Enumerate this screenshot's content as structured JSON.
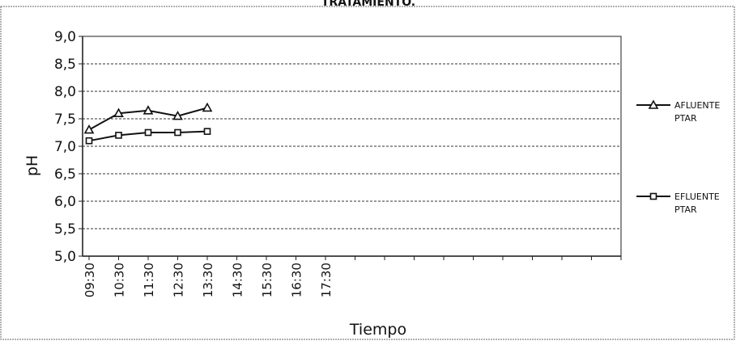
{
  "chart_data": {
    "type": "line",
    "title": "TRATAMIENTO.",
    "xlabel": "Tiempo",
    "ylabel": "pH",
    "categories": [
      "09:30",
      "10:30",
      "11:30",
      "12:30",
      "13:30",
      "14:30",
      "15:30",
      "16:30",
      "17:30"
    ],
    "y_tick_labels": [
      "5,0",
      "5,5",
      "6,0",
      "6,5",
      "7,0",
      "7,5",
      "8,0",
      "8,5",
      "9,0"
    ],
    "ylim": [
      5.0,
      9.0
    ],
    "grid": true,
    "legend_position": "right",
    "series": [
      {
        "name": "AFLUENTE PTAR",
        "legend_lines": [
          "AFLUENTE",
          "PTAR"
        ],
        "marker": "triangle",
        "values": [
          7.3,
          7.6,
          7.65,
          7.55,
          7.7,
          null,
          null,
          null,
          null
        ]
      },
      {
        "name": "EFLUENTE PTAR",
        "legend_lines": [
          "EFLUENTE",
          "PTAR"
        ],
        "marker": "square",
        "values": [
          7.1,
          7.2,
          7.25,
          7.25,
          7.27,
          null,
          null,
          null,
          null
        ]
      }
    ]
  }
}
